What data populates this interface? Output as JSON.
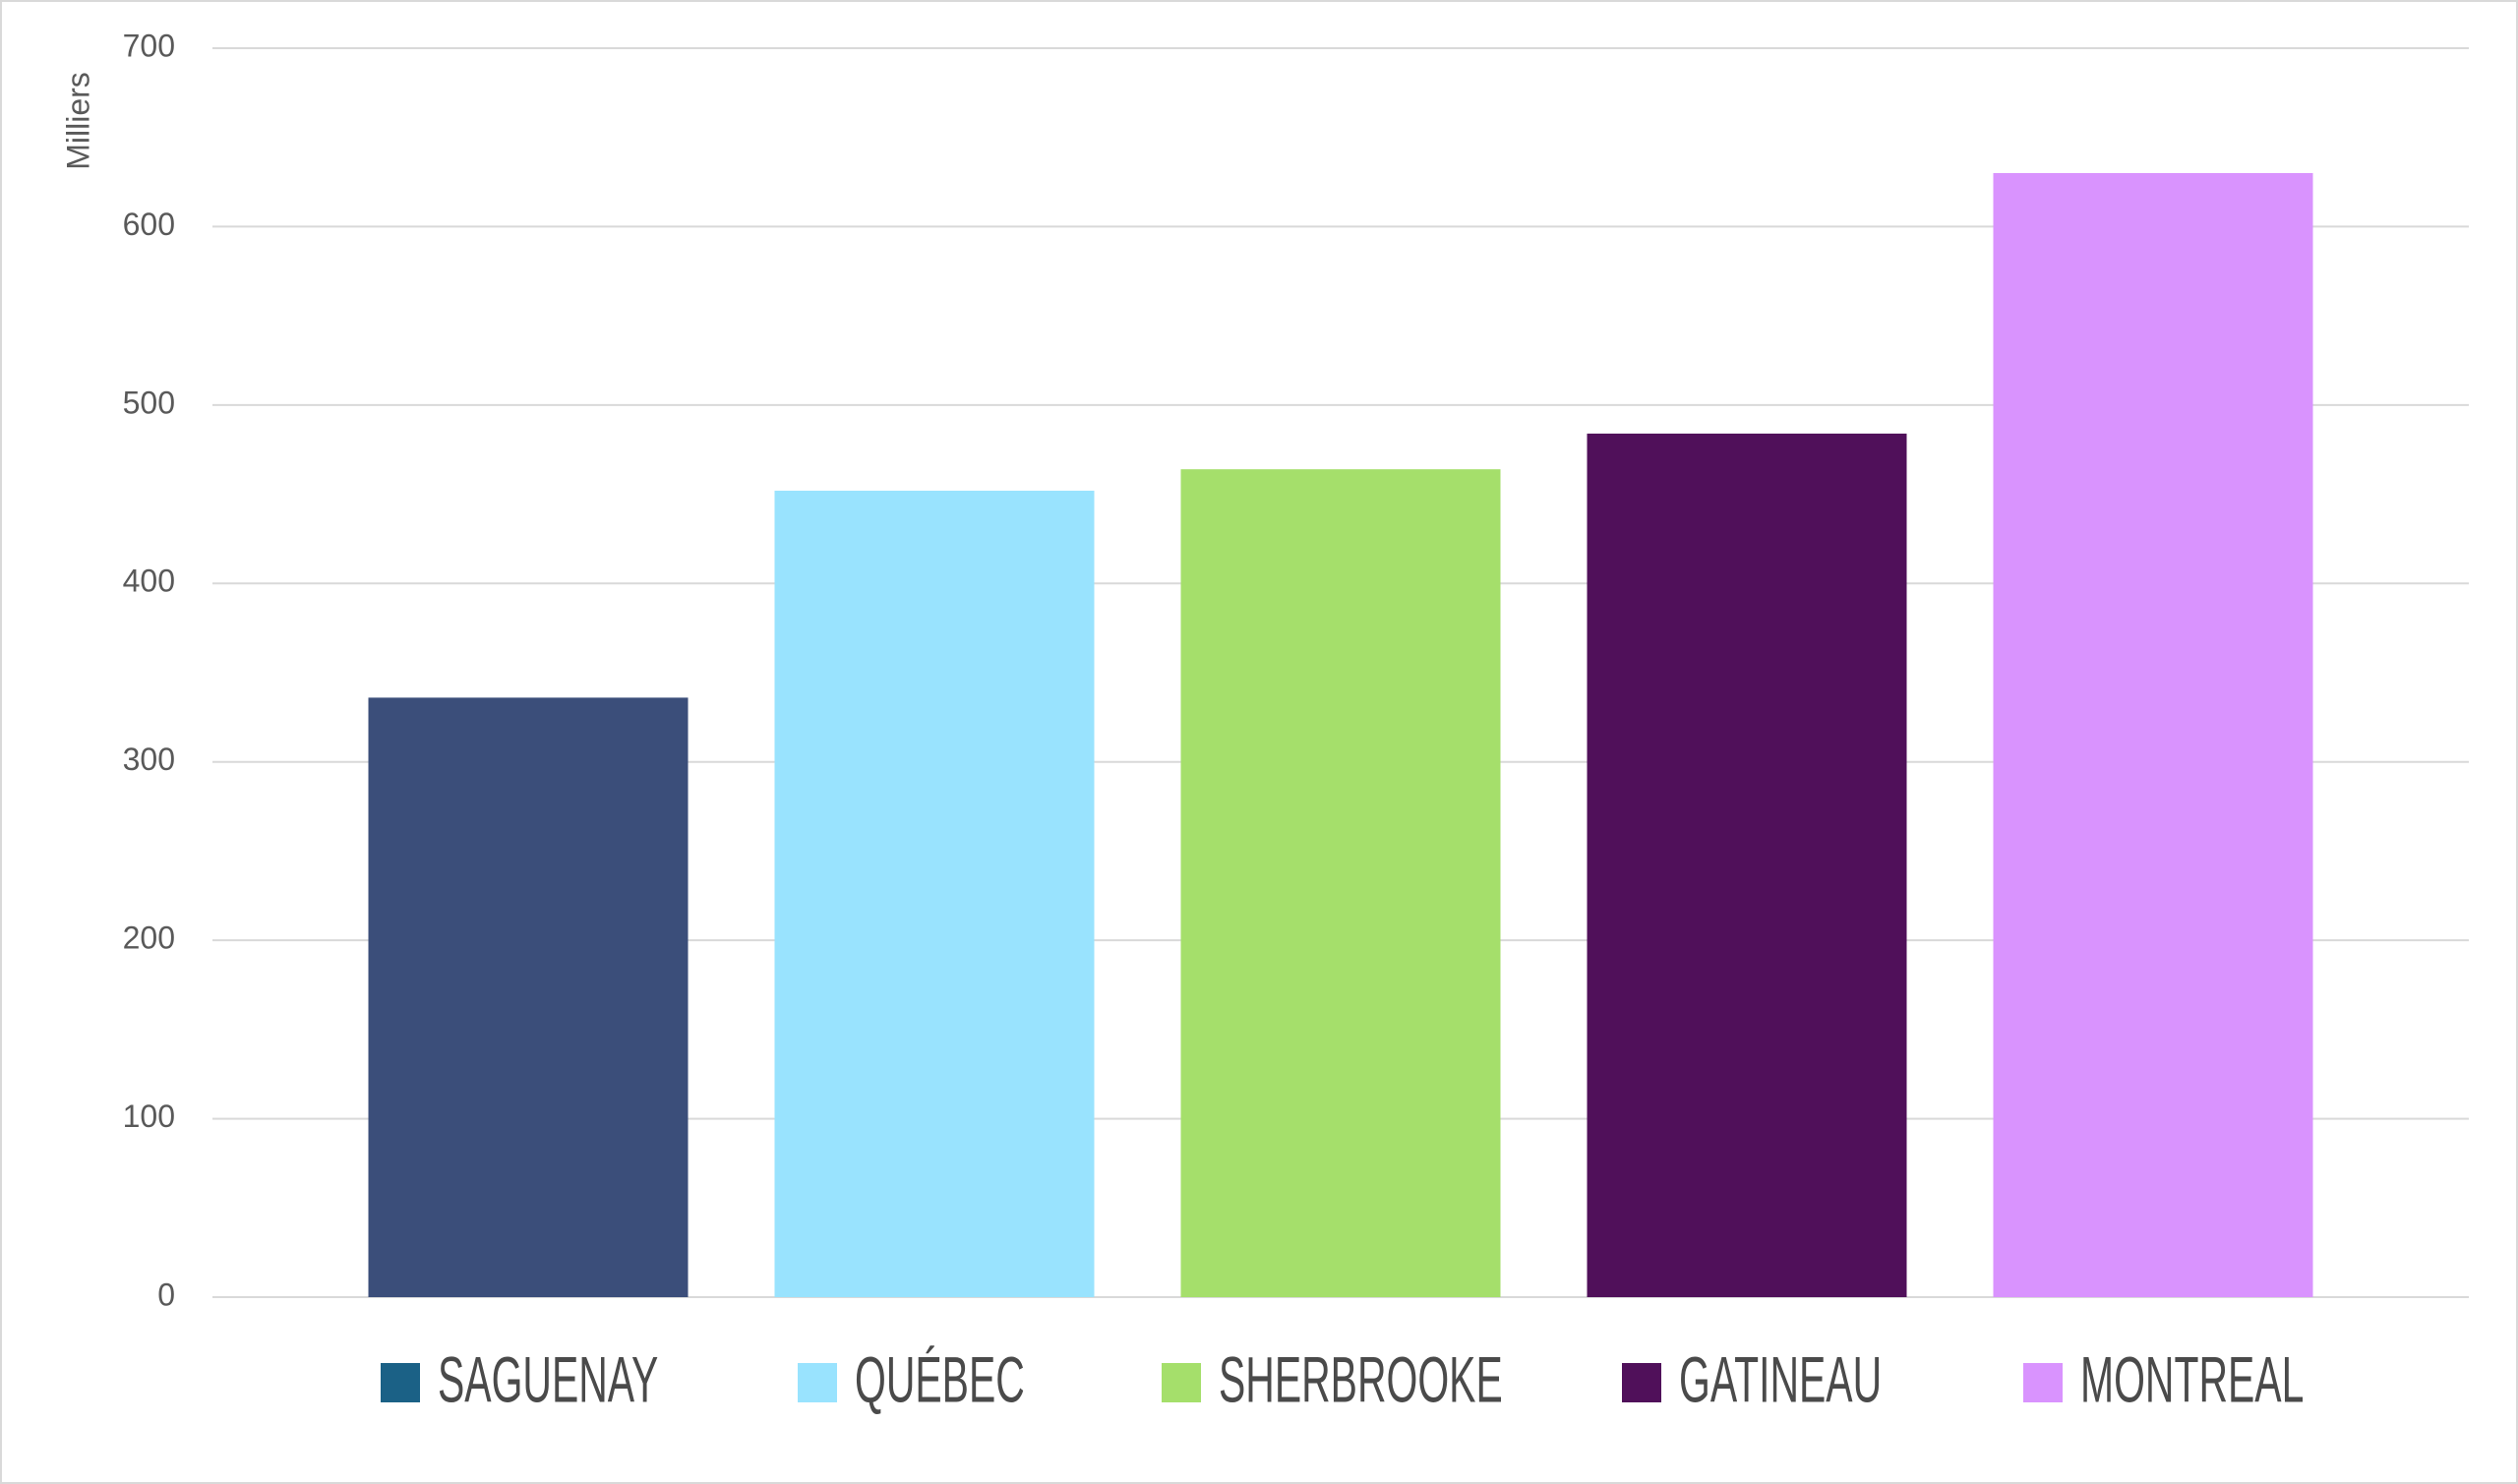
{
  "chart_data": {
    "type": "bar",
    "y_label": "Milliers",
    "categories": [
      null
    ],
    "series": [
      {
        "name": "SAGUENAY",
        "color": "#3b4e7a",
        "legend_color": "#1b6186",
        "values": [
          336
        ]
      },
      {
        "name": "QUÉBEC",
        "color": "#99e3fe",
        "legend_color": "#99e3fe",
        "values": [
          452
        ]
      },
      {
        "name": "SHERBROOKE",
        "color": "#a5df6b",
        "legend_color": "#a5df6b",
        "values": [
          464
        ]
      },
      {
        "name": "GATINEAU",
        "color": "#50105a",
        "legend_color": "#50105a",
        "values": [
          484
        ]
      },
      {
        "name": "MONTREAL",
        "color": "#d993fe",
        "legend_color": "#d993fe",
        "values": [
          630
        ]
      }
    ],
    "ylim": [
      0,
      700
    ],
    "yticks": [
      0,
      100,
      200,
      300,
      400,
      500,
      600,
      700
    ],
    "grid": true,
    "legend": "bottom"
  }
}
